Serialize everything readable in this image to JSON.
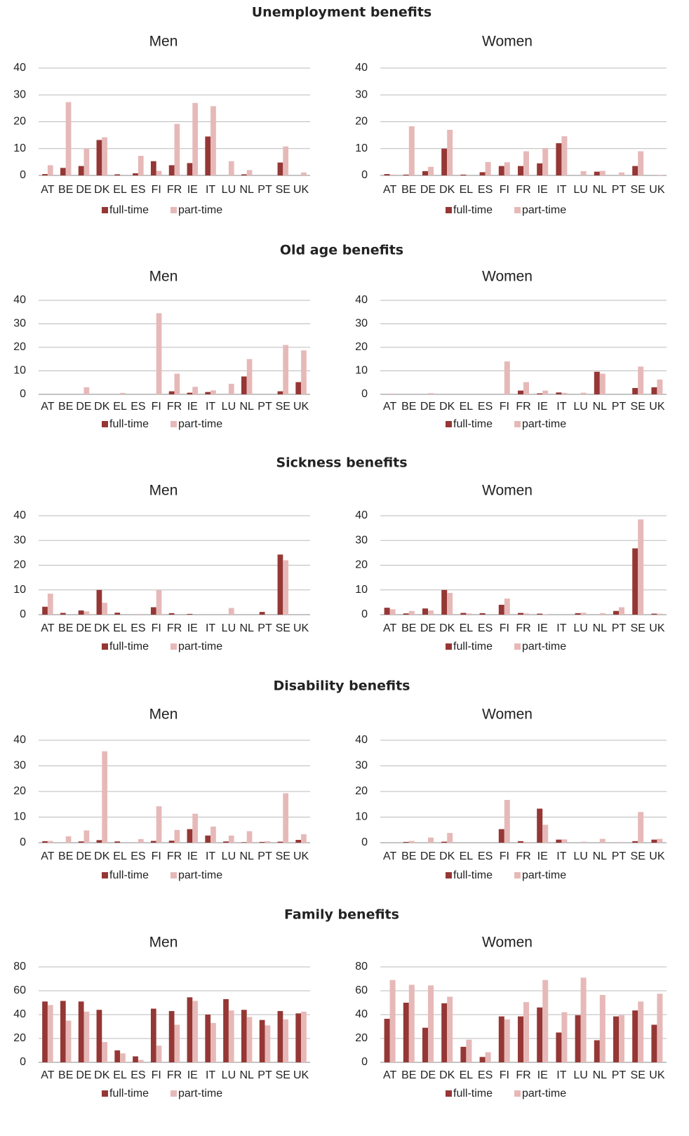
{
  "section_titles": [
    "Unemployment benefits",
    "Old age benefits",
    "Sickness benefits",
    "Disability benefits",
    "Family benefits"
  ],
  "chart_data": [
    {
      "type": "bar",
      "title": "Men",
      "categories": [
        "AT",
        "BE",
        "DE",
        "DK",
        "EL",
        "ES",
        "FI",
        "FR",
        "IE",
        "IT",
        "LU",
        "NL",
        "PT",
        "SE",
        "UK"
      ],
      "ylim": [
        0,
        40
      ],
      "yticks": [
        0,
        10,
        20,
        30,
        40
      ],
      "grid": true,
      "legend": "bottom",
      "series": [
        {
          "name": "full-time",
          "color": "#953735",
          "values": [
            0.5,
            2.8,
            3.5,
            13.2,
            0.4,
            0.8,
            5.3,
            3.8,
            4.6,
            14.5,
            0,
            0.4,
            0,
            4.8,
            0
          ]
        },
        {
          "name": "part-time",
          "color": "#e6b9b8",
          "values": [
            3.8,
            27.3,
            10,
            14.2,
            0,
            7.3,
            1.7,
            19.2,
            27,
            25.8,
            5.3,
            2,
            0,
            10.8,
            1.1
          ]
        }
      ]
    },
    {
      "type": "bar",
      "title": "Women",
      "categories": [
        "AT",
        "BE",
        "DE",
        "DK",
        "EL",
        "ES",
        "FI",
        "FR",
        "IE",
        "IT",
        "LU",
        "NL",
        "PT",
        "SE",
        "UK"
      ],
      "ylim": [
        0,
        40
      ],
      "yticks": [
        0,
        10,
        20,
        30,
        40
      ],
      "grid": true,
      "legend": "bottom",
      "series": [
        {
          "name": "full-time",
          "color": "#953735",
          "values": [
            0.5,
            0.3,
            1.6,
            10,
            0.3,
            1.2,
            3.5,
            3.5,
            4.5,
            12,
            0,
            1.4,
            0,
            3.5,
            0
          ]
        },
        {
          "name": "part-time",
          "color": "#e6b9b8",
          "values": [
            0.3,
            18.3,
            3.2,
            17,
            0,
            5,
            4.9,
            9,
            10.2,
            14.6,
            1.6,
            1.7,
            1.1,
            9,
            0.2
          ]
        }
      ]
    },
    {
      "type": "bar",
      "title": "Men",
      "categories": [
        "AT",
        "BE",
        "DE",
        "DK",
        "EL",
        "ES",
        "FI",
        "FR",
        "IE",
        "IT",
        "LU",
        "NL",
        "PT",
        "SE",
        "UK"
      ],
      "ylim": [
        0,
        40
      ],
      "yticks": [
        0,
        10,
        20,
        30,
        40
      ],
      "grid": true,
      "legend": "bottom",
      "series": [
        {
          "name": "full-time",
          "color": "#953735",
          "values": [
            0,
            0,
            0,
            0,
            0,
            0,
            0,
            1.3,
            0.7,
            1,
            0,
            7.6,
            0,
            1.3,
            5.2
          ]
        },
        {
          "name": "part-time",
          "color": "#e6b9b8",
          "values": [
            0,
            0,
            3,
            0,
            0.6,
            0,
            34.5,
            8.8,
            3.2,
            1.7,
            4.5,
            15,
            0,
            21,
            18.7
          ]
        }
      ]
    },
    {
      "type": "bar",
      "title": "Women",
      "categories": [
        "AT",
        "BE",
        "DE",
        "DK",
        "EL",
        "ES",
        "FI",
        "FR",
        "IE",
        "IT",
        "LU",
        "NL",
        "PT",
        "SE",
        "UK"
      ],
      "ylim": [
        0,
        40
      ],
      "yticks": [
        0,
        10,
        20,
        30,
        40
      ],
      "grid": true,
      "legend": "bottom",
      "series": [
        {
          "name": "full-time",
          "color": "#953735",
          "values": [
            0,
            0,
            0,
            0,
            0,
            0,
            0,
            1.6,
            0.4,
            0.8,
            0,
            9.6,
            0,
            2.7,
            3
          ]
        },
        {
          "name": "part-time",
          "color": "#e6b9b8",
          "values": [
            0.3,
            0,
            0.5,
            0,
            0,
            0,
            14,
            5.2,
            1.6,
            0.6,
            0.7,
            8.8,
            0,
            11.8,
            6.3
          ]
        }
      ]
    },
    {
      "type": "bar",
      "title": "Men",
      "categories": [
        "AT",
        "BE",
        "DE",
        "DK",
        "EL",
        "ES",
        "FI",
        "FR",
        "IE",
        "IT",
        "LU",
        "NL",
        "PT",
        "SE",
        "UK"
      ],
      "ylim": [
        0,
        40
      ],
      "yticks": [
        0,
        10,
        20,
        30,
        40
      ],
      "grid": true,
      "legend": "bottom",
      "series": [
        {
          "name": "full-time",
          "color": "#953735",
          "values": [
            3.2,
            0.7,
            1.7,
            10,
            0.8,
            0,
            3,
            0.6,
            0.3,
            0,
            0,
            0,
            1.1,
            24.3,
            0
          ]
        },
        {
          "name": "part-time",
          "color": "#e6b9b8",
          "values": [
            8.5,
            0,
            1.3,
            4.8,
            0,
            0.3,
            10,
            0,
            0,
            0,
            2.7,
            0,
            0,
            22,
            0
          ]
        }
      ]
    },
    {
      "type": "bar",
      "title": "Women",
      "categories": [
        "AT",
        "BE",
        "DE",
        "DK",
        "EL",
        "ES",
        "FI",
        "FR",
        "IE",
        "IT",
        "LU",
        "NL",
        "PT",
        "SE",
        "UK"
      ],
      "ylim": [
        0,
        40
      ],
      "yticks": [
        0,
        10,
        20,
        30,
        40
      ],
      "grid": true,
      "legend": "bottom",
      "series": [
        {
          "name": "full-time",
          "color": "#953735",
          "values": [
            2.8,
            0.5,
            2.5,
            10,
            0.7,
            0.6,
            4,
            0.7,
            0.4,
            0,
            0.6,
            0,
            1.5,
            26.8,
            0.4
          ]
        },
        {
          "name": "part-time",
          "color": "#e6b9b8",
          "values": [
            2.2,
            1.5,
            1.7,
            8.8,
            0.5,
            0,
            6.5,
            0.5,
            0.2,
            0,
            0.8,
            0.6,
            3,
            38.5,
            0.4
          ]
        }
      ]
    },
    {
      "type": "bar",
      "title": "Men",
      "categories": [
        "AT",
        "BE",
        "DE",
        "DK",
        "EL",
        "ES",
        "FI",
        "FR",
        "IE",
        "IT",
        "LU",
        "NL",
        "PT",
        "SE",
        "UK"
      ],
      "ylim": [
        0,
        40
      ],
      "yticks": [
        0,
        10,
        20,
        30,
        40
      ],
      "grid": true,
      "legend": "bottom",
      "series": [
        {
          "name": "full-time",
          "color": "#953735",
          "values": [
            0.6,
            0,
            0.5,
            1,
            0.5,
            0,
            0.7,
            0.8,
            5.3,
            2.8,
            0.5,
            0.2,
            0.3,
            0.4,
            1.1
          ]
        },
        {
          "name": "part-time",
          "color": "#e6b9b8",
          "values": [
            0.7,
            2.5,
            4.8,
            35.7,
            0,
            1.4,
            14.2,
            5,
            11.3,
            6.3,
            2.8,
            4.5,
            0.6,
            19.3,
            3.3
          ]
        }
      ]
    },
    {
      "type": "bar",
      "title": "Women",
      "categories": [
        "AT",
        "BE",
        "DE",
        "DK",
        "EL",
        "ES",
        "FI",
        "FR",
        "IE",
        "IT",
        "LU",
        "NL",
        "PT",
        "SE",
        "UK"
      ],
      "ylim": [
        0,
        40
      ],
      "yticks": [
        0,
        10,
        20,
        30,
        40
      ],
      "grid": true,
      "legend": "bottom",
      "series": [
        {
          "name": "full-time",
          "color": "#953735",
          "values": [
            0,
            0.3,
            0,
            0.4,
            0,
            0,
            5.3,
            0.6,
            13.3,
            1.2,
            0,
            0,
            0,
            0.6,
            1.2
          ]
        },
        {
          "name": "part-time",
          "color": "#e6b9b8",
          "values": [
            0,
            0.7,
            2,
            3.8,
            0,
            0,
            16.7,
            0.3,
            7,
            1.3,
            0.4,
            1.5,
            0.3,
            12,
            1.5
          ]
        }
      ]
    },
    {
      "type": "bar",
      "title": "Men",
      "categories": [
        "AT",
        "BE",
        "DE",
        "DK",
        "EL",
        "ES",
        "FI",
        "FR",
        "IE",
        "IT",
        "LU",
        "NL",
        "PT",
        "SE",
        "UK"
      ],
      "ylim": [
        0,
        80
      ],
      "yticks": [
        0,
        20,
        40,
        60,
        80
      ],
      "grid": true,
      "legend": "bottom",
      "series": [
        {
          "name": "full-time",
          "color": "#953735",
          "values": [
            51,
            51.5,
            51,
            44,
            10,
            5,
            45,
            43,
            54.5,
            40,
            53,
            44,
            35.5,
            43,
            41
          ]
        },
        {
          "name": "part-time",
          "color": "#e6b9b8",
          "values": [
            48,
            35,
            42.5,
            17,
            7.5,
            2,
            14,
            31.5,
            51.5,
            33,
            43.5,
            38,
            31,
            36,
            42.5
          ]
        }
      ]
    },
    {
      "type": "bar",
      "title": "Women",
      "categories": [
        "AT",
        "BE",
        "DE",
        "DK",
        "EL",
        "ES",
        "FI",
        "FR",
        "IE",
        "IT",
        "LU",
        "NL",
        "PT",
        "SE",
        "UK"
      ],
      "ylim": [
        0,
        80
      ],
      "yticks": [
        0,
        20,
        40,
        60,
        80
      ],
      "grid": true,
      "legend": "bottom",
      "series": [
        {
          "name": "full-time",
          "color": "#953735",
          "values": [
            36.5,
            50,
            29,
            49.5,
            13,
            4.5,
            38.5,
            38.5,
            46,
            25,
            39.5,
            18.5,
            38.5,
            43.5,
            31.5
          ]
        },
        {
          "name": "part-time",
          "color": "#e6b9b8",
          "values": [
            69,
            65,
            64.5,
            55,
            19,
            8.5,
            36,
            50.5,
            69,
            42,
            71,
            56.5,
            39.5,
            51,
            57.5
          ]
        }
      ]
    }
  ]
}
